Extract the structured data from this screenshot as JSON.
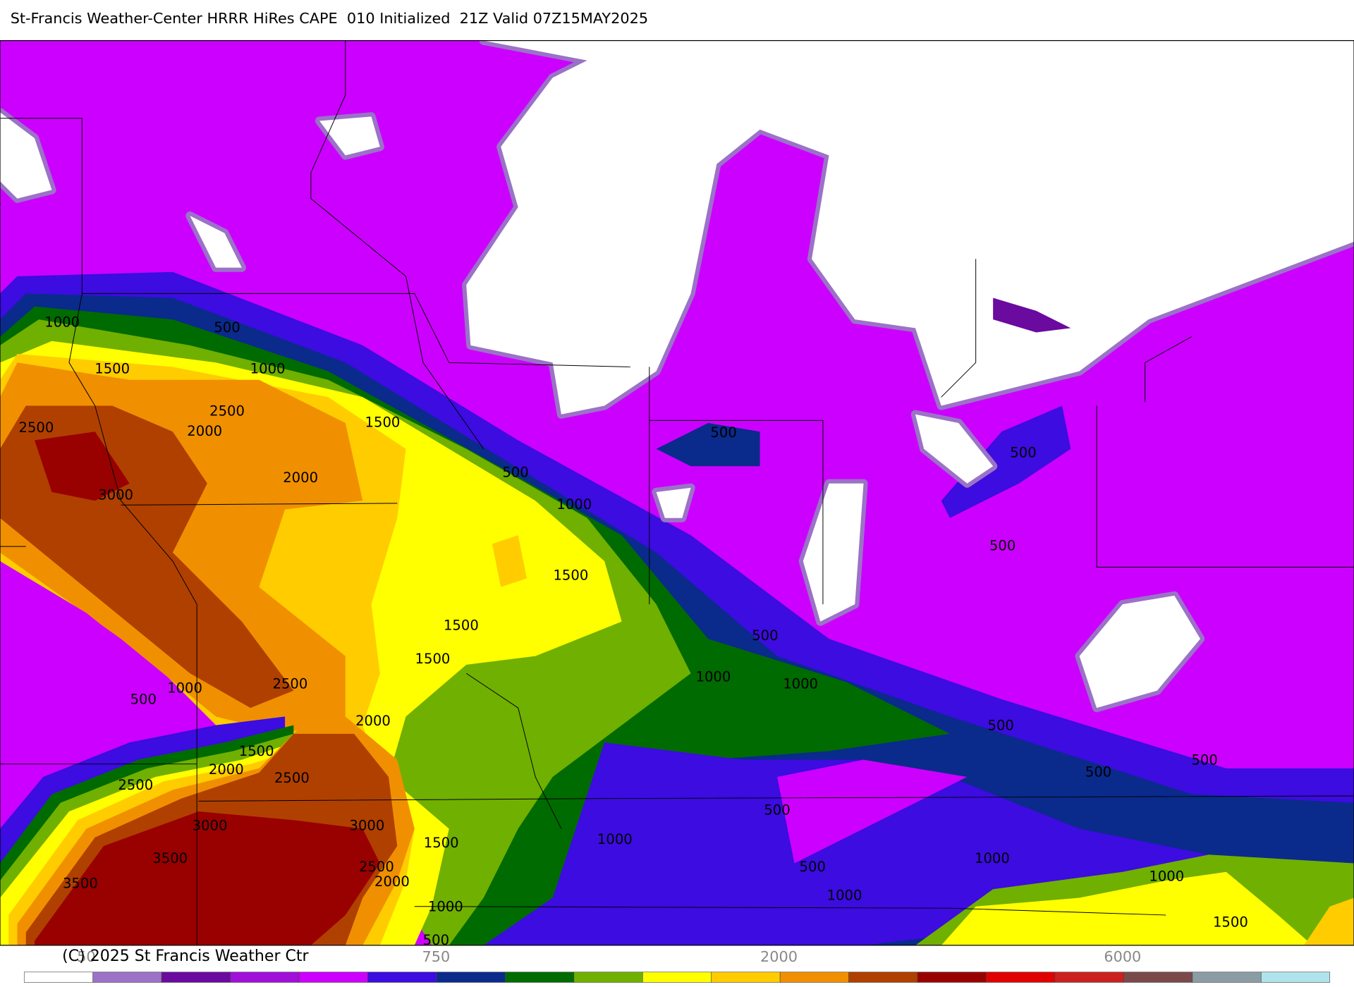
{
  "header": {
    "title": "St-Francis Weather-Center HRRR HiRes CAPE  010 Initialized  21Z Valid 07Z15MAY2025"
  },
  "map": {
    "contour_labels": [
      "1000",
      "500",
      "1500",
      "1000",
      "2500",
      "1500",
      "2500",
      "2000",
      "500",
      "500",
      "500",
      "2000",
      "3000",
      "1000",
      "500",
      "1500",
      "1500",
      "500",
      "1500",
      "2500",
      "1000",
      "1000",
      "1000",
      "500",
      "2000",
      "500",
      "1500",
      "500",
      "2000",
      "2500",
      "500",
      "2500",
      "500",
      "3000",
      "3000",
      "1000",
      "1500",
      "3500",
      "1000",
      "2500",
      "500",
      "2000",
      "3500",
      "1000",
      "1000",
      "1000",
      "1500",
      "500"
    ]
  },
  "colorbar": {
    "colors": [
      "#ffffff",
      "#9b72c7",
      "#6b0a9e",
      "#a010d8",
      "#cc00ff",
      "#3c0ce0",
      "#0a2a8c",
      "#006b00",
      "#70b000",
      "#ffff00",
      "#ffcc00",
      "#f09000",
      "#b04000",
      "#990000",
      "#e00000",
      "#cc2020",
      "#7a4a4a",
      "#8c9ca4",
      "#b0e4ec"
    ],
    "labels": [
      "50",
      "750",
      "2000",
      "6000"
    ]
  },
  "footer": {
    "copyright": "(C) 2025 St Francis Weather Ctr"
  }
}
